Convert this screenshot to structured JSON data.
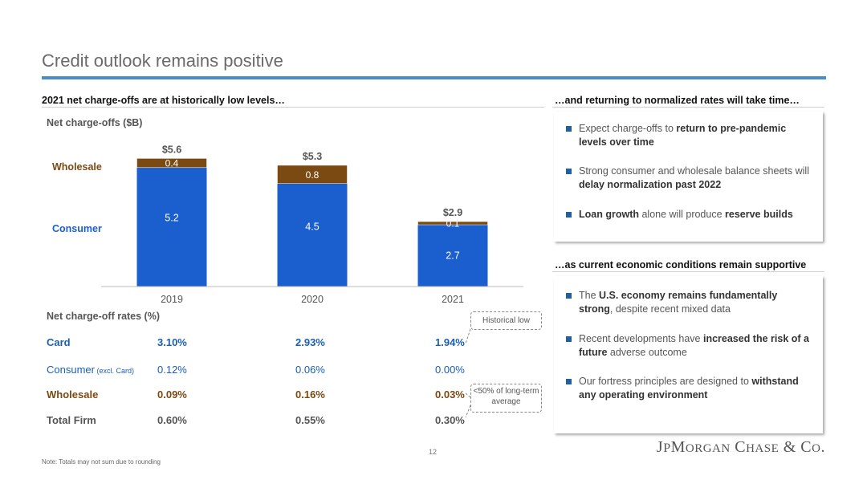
{
  "page": {
    "title": "Credit outlook remains positive",
    "footnote": "Note: Totals may not sum due to rounding",
    "page_number": "12",
    "logo_text": "JPMORGAN CHASE & CO."
  },
  "left": {
    "heading": "2021 net charge-offs are at historically low levels…",
    "chart_title": "Net charge-offs ($B)",
    "rates_title": "Net charge-off rates (%)"
  },
  "colors": {
    "consumer": "#1b5fce",
    "wholesale": "#7b4a12",
    "accent_rule": "#4a8cc7",
    "card": "#1a5fb4"
  },
  "chart_data": {
    "type": "bar",
    "stacked": true,
    "title": "Net charge-offs ($B)",
    "categories": [
      "2019",
      "2020",
      "2021"
    ],
    "series": [
      {
        "name": "Consumer",
        "values": [
          5.2,
          4.5,
          2.7
        ],
        "color": "#1b5fce"
      },
      {
        "name": "Wholesale",
        "values": [
          0.4,
          0.8,
          0.1
        ],
        "color": "#7b4a12"
      }
    ],
    "value_labels": {
      "Consumer": [
        "5.2",
        "4.5",
        "2.7"
      ],
      "Wholesale": [
        "0.4",
        "0.8",
        "0.1"
      ]
    },
    "totals": [
      "$5.6",
      "$5.3",
      "$2.9"
    ],
    "total_values": [
      5.6,
      5.3,
      2.9
    ],
    "ylim": [
      0,
      6.5
    ],
    "legend_placement": "left"
  },
  "rates": {
    "rows": [
      {
        "label": "Card",
        "sub": "",
        "values": [
          "3.10%",
          "2.93%",
          "1.94%"
        ],
        "color": "#1a5fb4",
        "bold": true
      },
      {
        "label": "Consumer",
        "sub": "(excl. Card)",
        "values": [
          "0.12%",
          "0.06%",
          "0.00%"
        ],
        "color": "#1a5fb4",
        "bold": false
      },
      {
        "label": "Wholesale",
        "sub": "",
        "values": [
          "0.09%",
          "0.16%",
          "0.03%"
        ],
        "color": "#7b4a12",
        "bold": true
      },
      {
        "label": "Total Firm",
        "sub": "",
        "values": [
          "0.60%",
          "0.55%",
          "0.30%"
        ],
        "color": "#555555",
        "bold": true
      }
    ],
    "callout_hist": "Historical low",
    "callout_lt": "<50% of long-term average"
  },
  "right": {
    "heading1": "…and returning to normalized rates will take time…",
    "bullets1": [
      [
        {
          "t": "Expect charge-offs to ",
          "b": false
        },
        {
          "t": "return to pre-pandemic levels over time",
          "b": true
        }
      ],
      [
        {
          "t": "Strong consumer and wholesale balance sheets will ",
          "b": false
        },
        {
          "t": "delay normalization past 2022",
          "b": true
        }
      ],
      [
        {
          "t": "Loan growth",
          "b": true
        },
        {
          "t": " alone will produce ",
          "b": false
        },
        {
          "t": "reserve builds",
          "b": true
        }
      ]
    ],
    "heading2": "…as current economic conditions remain supportive",
    "bullets2": [
      [
        {
          "t": "The ",
          "b": false
        },
        {
          "t": "U.S. economy remains fundamentally strong",
          "b": true
        },
        {
          "t": ", despite recent mixed data",
          "b": false
        }
      ],
      [
        {
          "t": "Recent developments have ",
          "b": false
        },
        {
          "t": "increased the risk of a future",
          "b": true
        },
        {
          "t": " adverse outcome",
          "b": false
        }
      ],
      [
        {
          "t": "Our fortress principles are designed to ",
          "b": false
        },
        {
          "t": "withstand any operating environment",
          "b": true
        }
      ]
    ]
  }
}
